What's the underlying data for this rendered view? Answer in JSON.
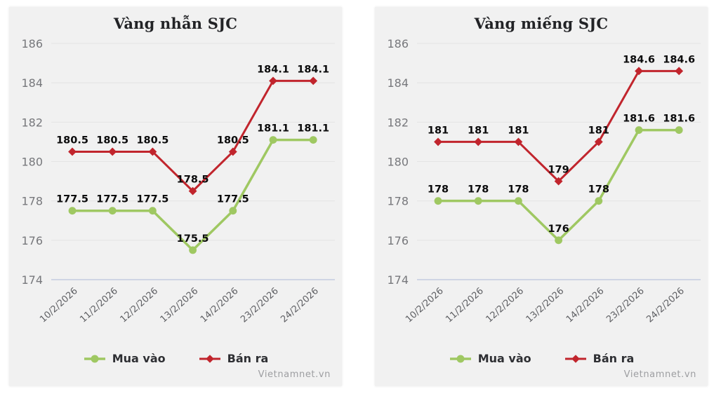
{
  "page_background": "#ffffff",
  "watermark": "Vietnamnet.vn",
  "colors": {
    "card_background": "#f1f1f1",
    "buy_green": "#9fc862",
    "sell_red": "#c1252d",
    "gridline": "#e4e4e4",
    "baseline_blue": "#c4cce0",
    "data_label": "#0b0b0c",
    "title_text": "#222326"
  },
  "chart_data": [
    {
      "type": "line",
      "title": "Vàng nhẫn SJC",
      "categories": [
        "10/2/2026",
        "11/2/2026",
        "12/2/2026",
        "13/2/2026",
        "14/2/2026",
        "23/2/2026",
        "24/2/2026"
      ],
      "series": [
        {
          "name": "Mua vào",
          "marker": "circle",
          "color": "#9fc862",
          "values": [
            177.5,
            177.5,
            177.5,
            175.5,
            177.5,
            181.1,
            181.1
          ]
        },
        {
          "name": "Bán ra",
          "marker": "diamond",
          "color": "#c1252d",
          "values": [
            180.5,
            180.5,
            180.5,
            178.5,
            180.5,
            184.1,
            184.1
          ]
        }
      ],
      "ylim": [
        174,
        186
      ],
      "yticks": [
        174,
        176,
        178,
        180,
        182,
        184,
        186
      ],
      "grid": "horizontal",
      "legend_position": "bottom"
    },
    {
      "type": "line",
      "title": "Vàng miếng SJC",
      "categories": [
        "10/2/2026",
        "11/2/2026",
        "12/2/2026",
        "13/2/2026",
        "14/2/2026",
        "23/2/2026",
        "24/2/2026"
      ],
      "series": [
        {
          "name": "Mua vào",
          "marker": "circle",
          "color": "#9fc862",
          "values": [
            178,
            178,
            178,
            176,
            178,
            181.6,
            181.6
          ]
        },
        {
          "name": "Bán ra",
          "marker": "diamond",
          "color": "#c1252d",
          "values": [
            181,
            181,
            181,
            179,
            181,
            184.6,
            184.6
          ]
        }
      ],
      "ylim": [
        174,
        186
      ],
      "yticks": [
        174,
        176,
        178,
        180,
        182,
        184,
        186
      ],
      "grid": "horizontal",
      "legend_position": "bottom"
    }
  ]
}
